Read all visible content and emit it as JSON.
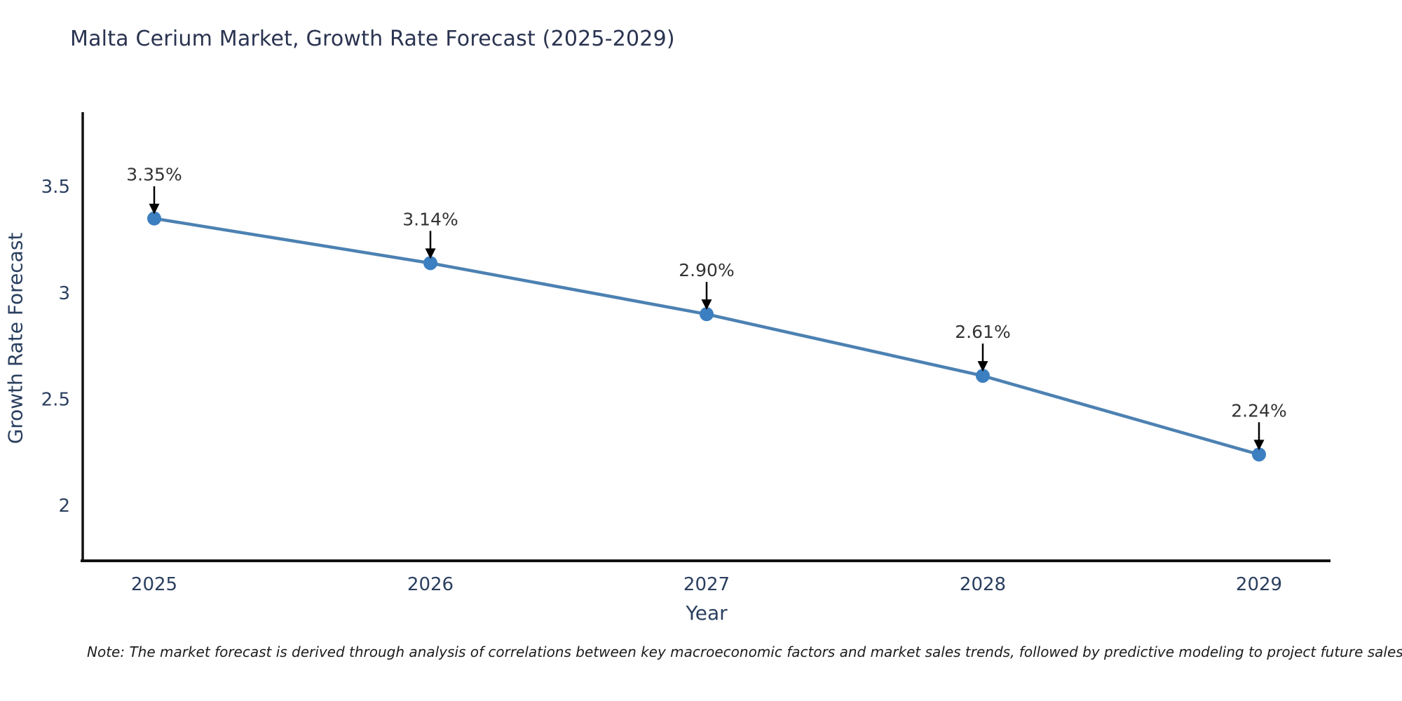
{
  "title": "Malta Cerium Market, Growth Rate Forecast (2025-2029)",
  "footnote": "Note: The market forecast is derived through analysis of correlations between key macroeconomic factors and market sales trends, followed by predictive modeling to project future sales",
  "chart_data": {
    "type": "line",
    "title": "Malta Cerium Market, Growth Rate Forecast (2025-2029)",
    "categories": [
      "2025",
      "2026",
      "2027",
      "2028",
      "2029"
    ],
    "values": [
      3.35,
      3.14,
      2.9,
      2.61,
      2.24
    ],
    "point_labels": [
      "3.35%",
      "3.14%",
      "2.90%",
      "2.61%",
      "2.24%"
    ],
    "xlabel": "Year",
    "ylabel": "Growth Rate Forecast",
    "ytick_values": [
      2,
      2.5,
      3,
      3.5
    ],
    "ytick_labels": [
      "2",
      "2.5",
      "3",
      "3.5"
    ],
    "ylim": [
      1.74,
      3.85
    ],
    "grid": false,
    "legend_position": "none",
    "colors": {
      "line": "#4c81b2",
      "marker": "#3c7fc0",
      "axis": "#111111",
      "title": "#2a3350",
      "tick": "#2a3f5f",
      "annotation_text": "#333333",
      "arrow": "#000000",
      "background": "#ffffff"
    }
  }
}
